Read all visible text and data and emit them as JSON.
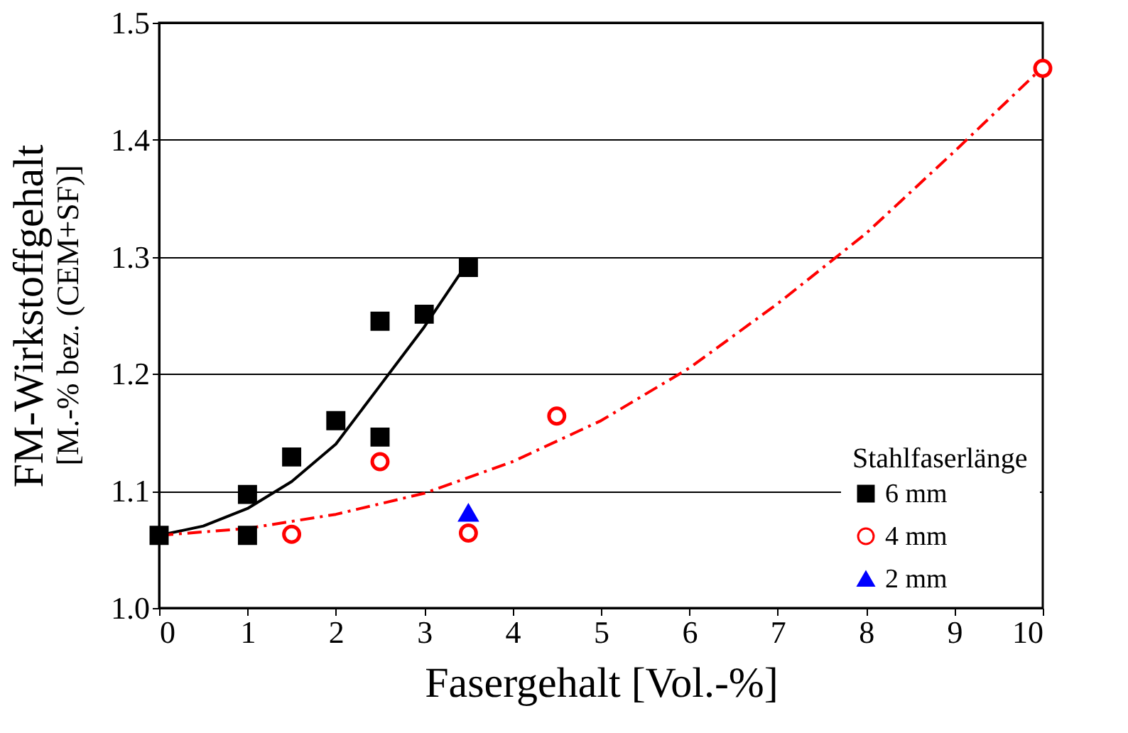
{
  "chart_data": {
    "type": "scatter",
    "xlabel": "Fasergehalt  [Vol.-%]",
    "ylabel": "FM-Wirkstoffgehalt",
    "annotations": [
      "[M.-% bez. (CEM+SF)]"
    ],
    "legend_title": "Stahlfaserlänge",
    "legend": "bottom right",
    "grid": "y",
    "xlim": [
      0,
      10
    ],
    "ylim": [
      1.0,
      1.5
    ],
    "xticks": [
      0,
      1,
      2,
      3,
      4,
      5,
      6,
      7,
      8,
      9,
      10
    ],
    "yticks": [
      {
        "value": 1.0,
        "label": "1.0"
      },
      1.1,
      1.2,
      1.3,
      1.4,
      1.5
    ],
    "series": [
      {
        "type": "line",
        "color": "#000000",
        "line_style": "solid",
        "x": [
          0,
          0.5,
          1,
          1.5,
          2,
          2.5,
          3,
          3.5
        ],
        "values": [
          1.062,
          1.07,
          1.085,
          1.108,
          1.14,
          1.19,
          1.24,
          1.296
        ]
      },
      {
        "type": "line",
        "color": "#ff0000",
        "line_style": "dashed",
        "x": [
          0,
          1,
          2,
          3,
          4,
          5,
          6,
          7,
          8,
          9,
          10
        ],
        "values": [
          1.062,
          1.068,
          1.08,
          1.098,
          1.125,
          1.16,
          1.205,
          1.26,
          1.32,
          1.39,
          1.462
        ]
      },
      {
        "name": "6 mm",
        "color": "#000000",
        "marker": "square",
        "x": [
          0,
          1,
          1,
          1.5,
          2,
          2.5,
          2.5,
          3,
          3.5
        ],
        "values": [
          1.062,
          1.097,
          1.062,
          1.129,
          1.16,
          1.245,
          1.146,
          1.251,
          1.291
        ]
      },
      {
        "name": "4 mm",
        "color": "#ff0000",
        "marker": "circle",
        "x": [
          1.5,
          2.5,
          3.5,
          4.5,
          10
        ],
        "values": [
          1.063,
          1.125,
          1.064,
          1.164,
          1.461
        ]
      },
      {
        "name": "2 mm",
        "color": "#0000ff",
        "marker": "triangle",
        "x": [
          3.5
        ],
        "values": [
          1.081
        ]
      }
    ]
  }
}
